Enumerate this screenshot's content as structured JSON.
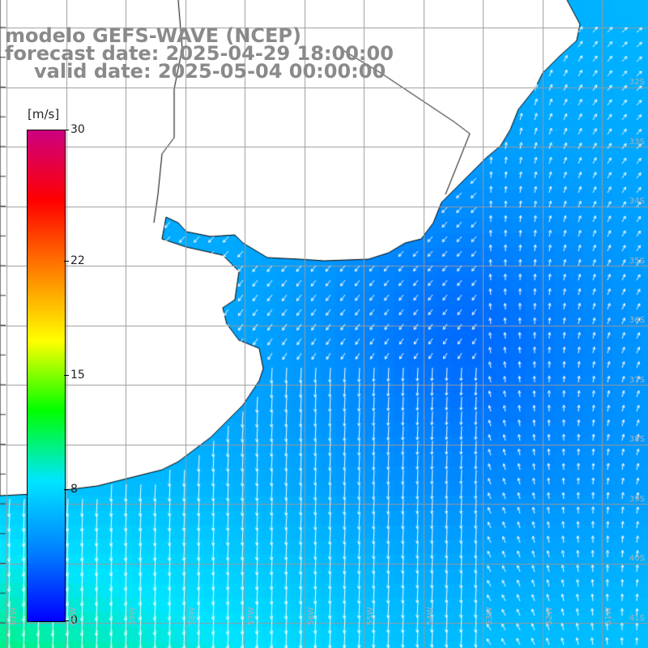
{
  "title": {
    "line1": "modelo GEFS-WAVE (NCEP)",
    "line2": "forecast date: 2025-04-29 18:00:00",
    "line3": "valid date: 2025-05-04 00:00:00"
  },
  "colorbar": {
    "units": "[m/s]",
    "min": 0,
    "max": 30,
    "ticks": [
      {
        "value": 30,
        "label": "30"
      },
      {
        "value": 22,
        "label": "22"
      },
      {
        "value": 15,
        "label": "15"
      },
      {
        "value": 8,
        "label": "8"
      },
      {
        "value": 0,
        "label": "0"
      }
    ],
    "colors": [
      "#0000ff",
      "#0080ff",
      "#00e5ff",
      "#00ff00",
      "#ffff00",
      "#ff8000",
      "#ff0000",
      "#cc0080"
    ]
  },
  "map": {
    "region": "southwest Atlantic (Uruguay / southern Brazil coast)",
    "land_color": "#ffffff",
    "grid_color": "#9a9a9a",
    "arrow_color": "#ffffff",
    "lon_labels": [
      "61W",
      "60W",
      "59W",
      "58W",
      "57W",
      "56W",
      "55W",
      "54W",
      "53W",
      "52W",
      "51W"
    ],
    "lat_labels": [
      "32S",
      "33S",
      "34S",
      "35S",
      "36S",
      "37S",
      "38S",
      "39S",
      "40S",
      "41S"
    ]
  }
}
